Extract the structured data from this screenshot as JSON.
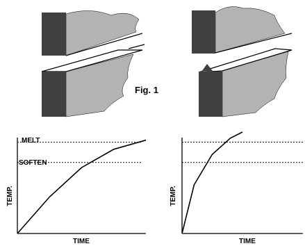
{
  "figure": {
    "caption": "Fig. 1",
    "colors": {
      "end_face": "#404040",
      "side_face": "#b3b3b3",
      "ink": "#000000",
      "background": "#ffffff"
    }
  },
  "chart_data": [
    {
      "type": "line",
      "xlabel": "TIME",
      "ylabel": "TEMP.",
      "reference_lines": [
        {
          "label": "MELT",
          "level": 0.9
        },
        {
          "label": "SOFTEN",
          "level": 0.7
        }
      ],
      "series": [
        {
          "x": [
            0,
            0.25,
            0.5,
            0.75,
            1.0
          ],
          "y": [
            0,
            0.36,
            0.65,
            0.83,
            0.92
          ]
        }
      ]
    },
    {
      "type": "line",
      "xlabel": "TIME",
      "ylabel": "TEMP.",
      "reference_lines": [
        {
          "label": "",
          "level": 0.9
        },
        {
          "label": "",
          "level": 0.7
        }
      ],
      "series": [
        {
          "x": [
            0,
            0.1,
            0.25,
            0.4,
            0.5
          ],
          "y": [
            0,
            0.48,
            0.78,
            0.94,
            1.0
          ]
        }
      ]
    }
  ]
}
